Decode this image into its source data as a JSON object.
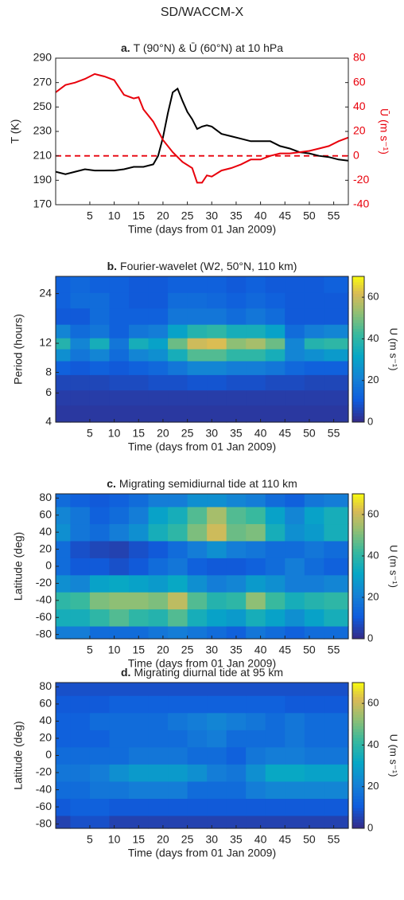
{
  "figure_title": "SD/WACCM-X",
  "chart_data": [
    {
      "type": "line",
      "panel_label": "a.",
      "title": "T (90°N) & Ū (60°N) at 10 hPa",
      "xlabel": "Time (days from 01 Jan 2009)",
      "ylabel": "T (K)",
      "y2label": "Ū (m s⁻¹)",
      "xlim": [
        -2,
        58
      ],
      "xticks": [
        5,
        10,
        15,
        20,
        25,
        30,
        35,
        40,
        45,
        50,
        55
      ],
      "ylim": [
        170,
        290
      ],
      "yticks": [
        170,
        190,
        210,
        230,
        250,
        270,
        290
      ],
      "y2lim": [
        -40,
        80
      ],
      "y2ticks": [
        -40,
        -20,
        0,
        20,
        40,
        60,
        80
      ],
      "y2color": "#e8000b",
      "reference_line": 0,
      "series": [
        {
          "color": "#000000",
          "x": [
            -2,
            0,
            2,
            4,
            6,
            8,
            10,
            12,
            14,
            16,
            18,
            19,
            20,
            21,
            22,
            23,
            24,
            25,
            26,
            27,
            28,
            29,
            30,
            32,
            34,
            36,
            38,
            40,
            42,
            44,
            46,
            48,
            50,
            52,
            54,
            56,
            58
          ],
          "values": [
            197,
            195,
            197,
            199,
            198,
            198,
            198,
            199,
            201,
            201,
            203,
            210,
            225,
            245,
            262,
            265,
            255,
            246,
            240,
            232,
            234,
            235,
            234,
            228,
            226,
            224,
            222,
            222,
            222,
            218,
            216,
            213,
            212,
            210,
            209,
            207,
            206
          ]
        },
        {
          "color": "#e8000b",
          "axis": "y2",
          "x": [
            -2,
            0,
            2,
            4,
            6,
            8,
            10,
            12,
            14,
            15,
            16,
            18,
            20,
            22,
            24,
            26,
            27,
            28,
            29,
            30,
            32,
            34,
            36,
            38,
            40,
            42,
            44,
            46,
            48,
            50,
            52,
            54,
            56,
            58
          ],
          "values": [
            52,
            58,
            60,
            63,
            67,
            65,
            62,
            50,
            47,
            48,
            38,
            28,
            13,
            3,
            -5,
            -10,
            -22,
            -22,
            -16,
            -17,
            -12,
            -10,
            -7,
            -3,
            -3,
            0,
            2,
            2,
            3,
            4,
            6,
            8,
            12,
            15
          ]
        }
      ]
    },
    {
      "type": "heatmap",
      "panel_label": "b.",
      "title": "Fourier-wavelet (W2, 50°N, 110 km)",
      "xlabel": "Time (days from 01 Jan 2009)",
      "ylabel": "Period (hours)",
      "log_y": true,
      "xlim": [
        -2,
        58
      ],
      "xticks": [
        5,
        10,
        15,
        20,
        25,
        30,
        35,
        40,
        45,
        50,
        55
      ],
      "ylim": [
        4,
        30.5
      ],
      "yticks": [
        4,
        6,
        8,
        12,
        24
      ],
      "colorbar": {
        "lim": [
          0,
          70
        ],
        "ticks": [
          0,
          20,
          40,
          60
        ],
        "label": "U (m s⁻¹)"
      },
      "x": [
        -1,
        3,
        7,
        11,
        15,
        19,
        23,
        27,
        31,
        35,
        39,
        43,
        47,
        51,
        55
      ],
      "y": [
        4.6,
        5.6,
        7,
        8.6,
        10.3,
        12,
        14,
        17.5,
        22,
        27
      ],
      "z": [
        [
          3,
          3,
          3,
          3,
          3,
          3,
          3,
          3,
          3,
          3,
          3,
          3,
          3,
          3,
          3
        ],
        [
          4,
          4,
          4,
          4,
          4,
          4,
          4,
          4,
          4,
          4,
          4,
          4,
          4,
          4,
          4
        ],
        [
          6,
          6,
          6,
          7,
          7,
          8,
          8,
          9,
          9,
          8,
          8,
          7,
          7,
          6,
          6
        ],
        [
          12,
          10,
          12,
          10,
          12,
          14,
          18,
          22,
          22,
          20,
          20,
          18,
          14,
          12,
          12
        ],
        [
          25,
          18,
          22,
          15,
          22,
          25,
          35,
          45,
          45,
          40,
          40,
          35,
          22,
          25,
          28
        ],
        [
          38,
          22,
          35,
          18,
          35,
          30,
          48,
          60,
          62,
          52,
          55,
          48,
          22,
          38,
          40
        ],
        [
          22,
          15,
          18,
          12,
          18,
          20,
          30,
          38,
          40,
          35,
          35,
          30,
          15,
          20,
          22
        ],
        [
          10,
          10,
          15,
          12,
          12,
          12,
          18,
          18,
          18,
          15,
          18,
          15,
          10,
          10,
          10
        ],
        [
          12,
          15,
          15,
          12,
          10,
          10,
          15,
          15,
          14,
          12,
          14,
          12,
          10,
          10,
          10
        ],
        [
          12,
          14,
          12,
          12,
          10,
          10,
          12,
          12,
          12,
          10,
          12,
          10,
          10,
          10,
          12
        ]
      ]
    },
    {
      "type": "heatmap",
      "panel_label": "c.",
      "title": "Migrating semidiurnal tide at 110 km",
      "xlabel": "Time (days from 01 Jan 2009)",
      "ylabel": "Latitude (deg)",
      "xlim": [
        -2,
        58
      ],
      "xticks": [
        5,
        10,
        15,
        20,
        25,
        30,
        35,
        40,
        45,
        50,
        55
      ],
      "ylim": [
        -85,
        85
      ],
      "yticks": [
        -80,
        -60,
        -40,
        -20,
        0,
        20,
        40,
        60,
        80
      ],
      "colorbar": {
        "lim": [
          0,
          70
        ],
        "ticks": [
          0,
          20,
          40,
          60
        ],
        "label": "U (m s⁻¹)"
      },
      "x": [
        -1,
        3,
        7,
        11,
        15,
        19,
        23,
        27,
        31,
        35,
        39,
        43,
        47,
        51,
        55
      ],
      "y": [
        -80,
        -60,
        -40,
        -20,
        0,
        20,
        40,
        60,
        80
      ],
      "z": [
        [
          20,
          20,
          15,
          15,
          15,
          18,
          20,
          18,
          15,
          12,
          18,
          15,
          12,
          15,
          15
        ],
        [
          35,
          35,
          40,
          45,
          40,
          38,
          45,
          35,
          30,
          28,
          35,
          30,
          25,
          30,
          35
        ],
        [
          40,
          42,
          50,
          52,
          52,
          50,
          58,
          45,
          38,
          40,
          52,
          42,
          35,
          38,
          40
        ],
        [
          25,
          22,
          30,
          32,
          30,
          28,
          32,
          25,
          20,
          22,
          28,
          25,
          20,
          20,
          22
        ],
        [
          15,
          10,
          10,
          8,
          10,
          15,
          18,
          12,
          10,
          10,
          12,
          15,
          20,
          15,
          12
        ],
        [
          15,
          8,
          6,
          5,
          8,
          10,
          15,
          20,
          25,
          20,
          18,
          15,
          15,
          18,
          15
        ],
        [
          25,
          18,
          15,
          20,
          25,
          35,
          40,
          50,
          60,
          48,
          50,
          35,
          25,
          28,
          35
        ],
        [
          22,
          18,
          12,
          15,
          20,
          30,
          35,
          45,
          55,
          45,
          42,
          30,
          22,
          30,
          35
        ],
        [
          15,
          12,
          10,
          12,
          15,
          20,
          20,
          25,
          25,
          22,
          20,
          15,
          12,
          18,
          20
        ]
      ]
    },
    {
      "type": "heatmap",
      "panel_label": "d.",
      "title": "Migrating diurnal tide at 95 km",
      "xlabel": "Time (days from 01 Jan 2009)",
      "ylabel": "Latitude (deg)",
      "xlim": [
        -2,
        58
      ],
      "xticks": [
        5,
        10,
        15,
        20,
        25,
        30,
        35,
        40,
        45,
        50,
        55
      ],
      "ylim": [
        -85,
        85
      ],
      "yticks": [
        -80,
        -60,
        -40,
        -20,
        0,
        20,
        40,
        60,
        80
      ],
      "colorbar": {
        "lim": [
          0,
          70
        ],
        "ticks": [
          0,
          20,
          40,
          60
        ],
        "label": "U (m s⁻¹)"
      },
      "x": [
        -1,
        3,
        7,
        11,
        15,
        19,
        23,
        27,
        31,
        35,
        39,
        43,
        47,
        51,
        55
      ],
      "y": [
        -80,
        -60,
        -40,
        -20,
        0,
        20,
        40,
        60,
        80
      ],
      "z": [
        [
          5,
          8,
          8,
          5,
          5,
          5,
          5,
          5,
          5,
          5,
          5,
          5,
          5,
          5,
          5
        ],
        [
          10,
          12,
          12,
          10,
          10,
          10,
          10,
          10,
          10,
          10,
          10,
          10,
          10,
          10,
          10
        ],
        [
          15,
          15,
          18,
          18,
          20,
          20,
          20,
          15,
          15,
          15,
          20,
          22,
          22,
          22,
          22
        ],
        [
          18,
          18,
          20,
          25,
          28,
          28,
          28,
          25,
          20,
          18,
          25,
          32,
          32,
          30,
          30
        ],
        [
          15,
          15,
          15,
          15,
          18,
          18,
          18,
          15,
          15,
          12,
          18,
          20,
          20,
          18,
          18
        ],
        [
          12,
          12,
          12,
          15,
          15,
          15,
          15,
          18,
          20,
          15,
          15,
          15,
          18,
          15,
          15
        ],
        [
          12,
          12,
          15,
          15,
          15,
          15,
          18,
          20,
          22,
          20,
          18,
          15,
          18,
          15,
          15
        ],
        [
          10,
          10,
          10,
          12,
          12,
          12,
          12,
          12,
          12,
          12,
          12,
          12,
          10,
          10,
          10
        ],
        [
          8,
          8,
          8,
          8,
          8,
          8,
          8,
          8,
          8,
          8,
          8,
          8,
          8,
          8,
          8
        ]
      ]
    }
  ]
}
